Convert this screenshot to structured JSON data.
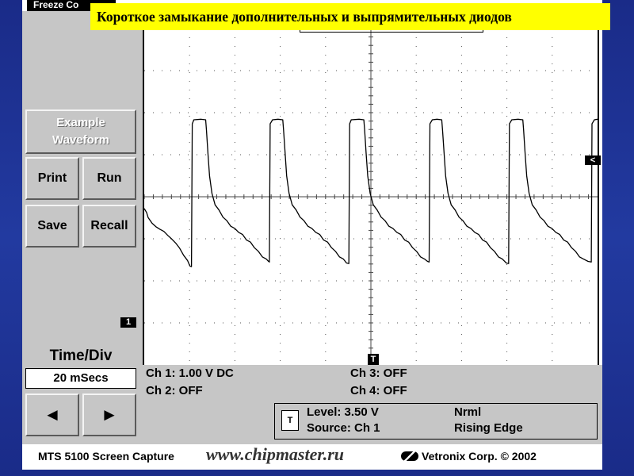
{
  "slide": {
    "title": "Короткое замыкание дополнительных и выпрямительных диодов"
  },
  "app": {
    "freeze_tab": "Freeze Co"
  },
  "buttons": {
    "example_line1": "Example",
    "example_line2": "Waveform",
    "print": "Print",
    "run": "Run",
    "save": "Save",
    "recall": "Recall",
    "prev_glyph": "◄",
    "next_glyph": "►"
  },
  "timebase": {
    "label": "Time/Div",
    "value": "20 mSecs"
  },
  "channels": {
    "ch1": "Ch 1: 1.00 V DC",
    "ch2": "Ch 2: OFF",
    "ch3": "Ch 3: OFF",
    "ch4": "Ch 4: OFF"
  },
  "trigger": {
    "icon": "T",
    "level": "Level: 3.50 V",
    "source": "Source: Ch 1",
    "mode": "Nrml",
    "edge": "Rising Edge"
  },
  "markers": {
    "ch1": "1",
    "trigger": "T",
    "level": "<"
  },
  "footer": {
    "caption": "MTS 5100 Screen Capture",
    "watermark": "www.chipmaster.ru",
    "copyright": "Vetronix Corp. © 2002"
  },
  "chart_data": {
    "type": "line",
    "series": [
      {
        "values": [
          [
            0,
            2.6
          ],
          [
            3,
            2.5
          ],
          [
            5,
            2.3
          ],
          [
            10,
            2.15
          ],
          [
            15,
            2.0
          ],
          [
            20,
            1.95
          ],
          [
            25,
            1.85
          ],
          [
            30,
            1.75
          ],
          [
            35,
            1.6
          ],
          [
            40,
            1.5
          ],
          [
            45,
            1.3
          ],
          [
            50,
            1.1
          ],
          [
            55,
            0.9
          ],
          [
            58,
            0.75
          ],
          [
            60,
            0.7
          ],
          [
            61,
            5.4
          ],
          [
            63,
            5.5
          ],
          [
            72,
            5.55
          ],
          [
            78,
            5.5
          ],
          [
            79,
            5.2
          ],
          [
            81,
            4.4
          ],
          [
            83,
            3.7
          ],
          [
            86,
            3.1
          ],
          [
            90,
            2.75
          ],
          [
            95,
            2.55
          ],
          [
            100,
            2.35
          ],
          [
            105,
            2.2
          ],
          [
            110,
            2.05
          ],
          [
            115,
            1.95
          ],
          [
            120,
            1.85
          ],
          [
            125,
            1.75
          ],
          [
            130,
            1.6
          ],
          [
            135,
            1.5
          ],
          [
            140,
            1.35
          ],
          [
            145,
            1.2
          ],
          [
            150,
            1.05
          ],
          [
            155,
            0.95
          ],
          [
            158,
            0.9
          ],
          [
            159,
            0.85
          ],
          [
            160,
            5.4
          ],
          [
            163,
            5.5
          ],
          [
            170,
            5.55
          ],
          [
            176,
            5.5
          ],
          [
            177,
            5.2
          ],
          [
            179,
            4.4
          ],
          [
            181,
            3.7
          ],
          [
            184,
            3.1
          ],
          [
            188,
            2.75
          ],
          [
            193,
            2.55
          ],
          [
            198,
            2.35
          ],
          [
            203,
            2.2
          ],
          [
            208,
            2.05
          ],
          [
            213,
            1.95
          ],
          [
            218,
            1.85
          ],
          [
            223,
            1.75
          ],
          [
            228,
            1.6
          ],
          [
            233,
            1.5
          ],
          [
            238,
            1.35
          ],
          [
            243,
            1.2
          ],
          [
            248,
            1.05
          ],
          [
            253,
            0.95
          ],
          [
            257,
            0.85
          ],
          [
            260,
            0.8
          ],
          [
            261,
            5.4
          ],
          [
            263,
            5.5
          ],
          [
            273,
            5.55
          ],
          [
            279,
            5.5
          ],
          [
            280,
            5.2
          ],
          [
            282,
            4.4
          ],
          [
            284,
            3.7
          ],
          [
            287,
            3.1
          ],
          [
            291,
            2.75
          ],
          [
            296,
            2.55
          ],
          [
            301,
            2.35
          ],
          [
            306,
            2.2
          ],
          [
            311,
            2.05
          ],
          [
            316,
            1.95
          ],
          [
            321,
            1.85
          ],
          [
            326,
            1.75
          ],
          [
            331,
            1.6
          ],
          [
            336,
            1.5
          ],
          [
            341,
            1.35
          ],
          [
            346,
            1.2
          ],
          [
            351,
            1.05
          ],
          [
            356,
            0.95
          ],
          [
            360,
            0.9
          ],
          [
            362,
            0.85
          ],
          [
            363,
            5.4
          ],
          [
            366,
            5.5
          ],
          [
            372,
            5.55
          ],
          [
            378,
            5.5
          ],
          [
            379,
            5.2
          ],
          [
            381,
            4.4
          ],
          [
            383,
            3.7
          ],
          [
            386,
            3.1
          ],
          [
            390,
            2.75
          ],
          [
            395,
            2.55
          ],
          [
            400,
            2.35
          ],
          [
            405,
            2.2
          ],
          [
            410,
            2.05
          ],
          [
            415,
            1.95
          ],
          [
            420,
            1.85
          ],
          [
            425,
            1.75
          ],
          [
            430,
            1.6
          ],
          [
            435,
            1.5
          ],
          [
            440,
            1.35
          ],
          [
            445,
            1.2
          ],
          [
            450,
            1.05
          ],
          [
            455,
            0.95
          ],
          [
            460,
            0.85
          ],
          [
            463,
            0.8
          ],
          [
            464,
            5.4
          ],
          [
            467,
            5.5
          ],
          [
            475,
            5.55
          ],
          [
            481,
            5.5
          ],
          [
            482,
            5.2
          ],
          [
            484,
            4.4
          ],
          [
            486,
            3.7
          ],
          [
            489,
            3.1
          ],
          [
            493,
            2.75
          ],
          [
            498,
            2.55
          ],
          [
            503,
            2.35
          ],
          [
            508,
            2.2
          ],
          [
            513,
            2.05
          ],
          [
            518,
            1.95
          ],
          [
            523,
            1.85
          ],
          [
            528,
            1.75
          ],
          [
            533,
            1.6
          ],
          [
            538,
            1.5
          ],
          [
            543,
            1.35
          ],
          [
            548,
            1.2
          ],
          [
            553,
            1.05
          ],
          [
            558,
            0.95
          ],
          [
            564,
            0.9
          ],
          [
            568,
            0.85
          ],
          [
            569,
            5.4
          ],
          [
            572,
            5.5
          ],
          [
            576,
            5.55
          ]
        ]
      }
    ],
    "xlim": [
      0,
      576
    ],
    "ylim": [
      -2.5,
      8.5
    ],
    "grid": true
  }
}
